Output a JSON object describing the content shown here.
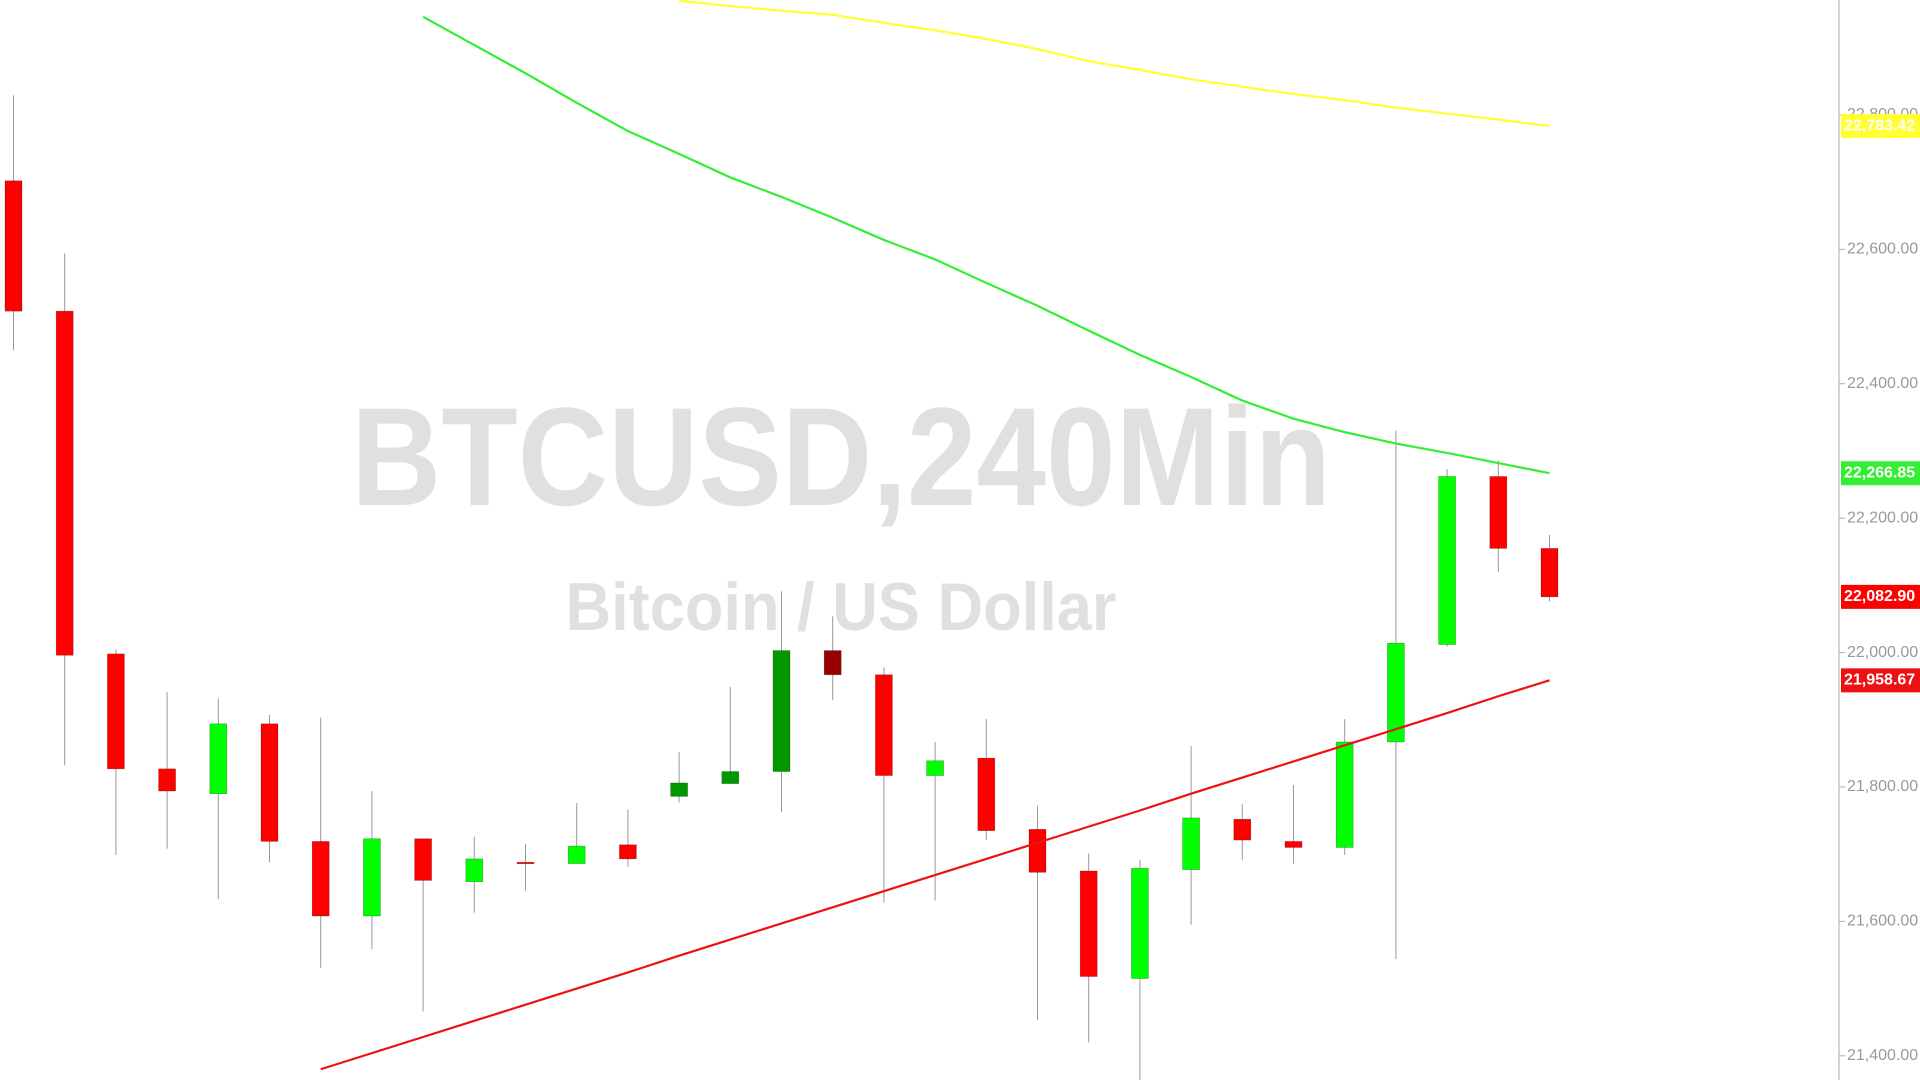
{
  "chart_data": {
    "type": "candlestick",
    "title": "BTCUSD,240Min",
    "subtitle": "Bitcoin / US Dollar",
    "categories": [
      null,
      null,
      null,
      null,
      null,
      null,
      null,
      null,
      null,
      null,
      null,
      null,
      null,
      null,
      null,
      null,
      null,
      null,
      null,
      null,
      null,
      null,
      null,
      null,
      null,
      null,
      null,
      null,
      null,
      null,
      null
    ],
    "open": [
      22702,
      22508,
      21998,
      21827,
      21790,
      21894,
      21719,
      21608,
      21723,
      21659,
      21688,
      21686,
      21714,
      21786,
      21805,
      21823,
      22003,
      21967,
      21817,
      21843,
      21737,
      21675,
      21515,
      21677,
      21752,
      21719,
      21710,
      21867,
      22012,
      22262,
      22155
    ],
    "high": [
      22829,
      22594,
      22005,
      21941,
      21932,
      21907,
      21903,
      21794,
      21723,
      21726,
      21715,
      21776,
      21766,
      21852,
      21949,
      22091,
      22054,
      21978,
      21867,
      21901,
      21772,
      21701,
      21692,
      21861,
      21774,
      21803,
      21901,
      22330,
      22273,
      22286,
      22175
    ],
    "low": [
      22450,
      21832,
      21699,
      21708,
      21633,
      21688,
      21531,
      21559,
      21466,
      21613,
      21646,
      21686,
      21681,
      21777,
      21805,
      21763,
      21929,
      21628,
      21631,
      21721,
      21453,
      21420,
      21364,
      21595,
      21692,
      21686,
      21699,
      21544,
      22009,
      22120,
      22076
    ],
    "close": [
      22508,
      21996,
      21827,
      21794,
      21894,
      21719,
      21608,
      21723,
      21661,
      21693,
      21686,
      21712,
      21693,
      21806,
      21823,
      22003,
      21967,
      21817,
      21839,
      21735,
      21673,
      21518,
      21679,
      21754,
      21721,
      21710,
      21867,
      22014,
      22262,
      22155,
      22082.9
    ],
    "close_labels": [
      null,
      null,
      null,
      null,
      null,
      null,
      null,
      null,
      null,
      null,
      null,
      null,
      null,
      null,
      null,
      null,
      null,
      null,
      null,
      null,
      null,
      null,
      null,
      null,
      null,
      null,
      null,
      null,
      null,
      null,
      "22,082.90"
    ],
    "colors": [
      "#ff0000",
      "#ff0000",
      "#ff0000",
      "#ff0000",
      "#00ff00",
      "#ff0000",
      "#ff0000",
      "#00ff00",
      "#ff0000",
      "#00ff00",
      "#ff0000",
      "#00ff00",
      "#ff0000",
      "#009900",
      "#009900",
      "#009900",
      "#990000",
      "#ff0000",
      "#00ff00",
      "#ff0000",
      "#ff0000",
      "#ff0000",
      "#00ff00",
      "#00ff00",
      "#ff0000",
      "#ff0000",
      "#00ff00",
      "#00ff00",
      "#00ff00",
      "#ff0000",
      "#ff0000"
    ],
    "wick_color": "#999999",
    "series": [
      {
        "color": "#ffff33",
        "values": [
          null,
          null,
          null,
          null,
          null,
          null,
          null,
          null,
          null,
          null,
          null,
          null,
          null,
          22970,
          22962,
          22955,
          22949,
          22937,
          22926,
          22913,
          22898,
          22880,
          22867,
          22853,
          22842,
          22831,
          22822,
          22811,
          22802,
          22793,
          22783.42
        ],
        "value_labels": [
          null,
          null,
          null,
          null,
          null,
          null,
          null,
          null,
          null,
          null,
          null,
          null,
          null,
          null,
          null,
          null,
          null,
          null,
          null,
          null,
          null,
          null,
          null,
          null,
          null,
          null,
          null,
          null,
          null,
          null,
          "22,783.42"
        ]
      },
      {
        "color": "#33ee33",
        "values": [
          null,
          null,
          null,
          null,
          null,
          null,
          null,
          null,
          22946,
          22904,
          22862,
          22818,
          22776,
          22742,
          22707,
          22678,
          22647,
          22614,
          22585,
          22550,
          22516,
          22479,
          22443,
          22410,
          22375,
          22348,
          22328,
          22311,
          22297,
          22282,
          22266.85
        ],
        "value_labels": [
          null,
          null,
          null,
          null,
          null,
          null,
          null,
          null,
          null,
          null,
          null,
          null,
          null,
          null,
          null,
          null,
          null,
          null,
          null,
          null,
          null,
          null,
          null,
          null,
          null,
          null,
          null,
          null,
          null,
          null,
          "22,266.85"
        ]
      },
      {
        "color": "#ee1111",
        "values": [
          null,
          null,
          null,
          null,
          null,
          null,
          21380,
          21404,
          21428,
          21452,
          21476,
          21500,
          21524,
          21549,
          21573,
          21597,
          21621,
          21645,
          21669,
          21693,
          21717,
          21741,
          21765,
          21790,
          21814,
          21838,
          21862,
          21886,
          21910,
          21935,
          21958.67
        ],
        "value_labels": [
          null,
          null,
          null,
          null,
          null,
          null,
          null,
          null,
          null,
          null,
          null,
          null,
          null,
          null,
          null,
          null,
          null,
          null,
          null,
          null,
          null,
          null,
          null,
          null,
          null,
          null,
          null,
          null,
          null,
          null,
          "21,958.67"
        ]
      }
    ],
    "ylim": [
      21364,
      22971
    ],
    "yticks": [
      {
        "value": 21400,
        "label": "21,400.00"
      },
      {
        "value": 21600,
        "label": "21,600.00"
      },
      {
        "value": 21800,
        "label": "21,800.00"
      },
      {
        "value": 22000,
        "label": "22,000.00"
      },
      {
        "value": 22200,
        "label": "22,200.00"
      },
      {
        "value": 22400,
        "label": "22,400.00"
      },
      {
        "value": 22600,
        "label": "22,600.00"
      },
      {
        "value": 22800,
        "label": "22,800.00"
      }
    ]
  }
}
